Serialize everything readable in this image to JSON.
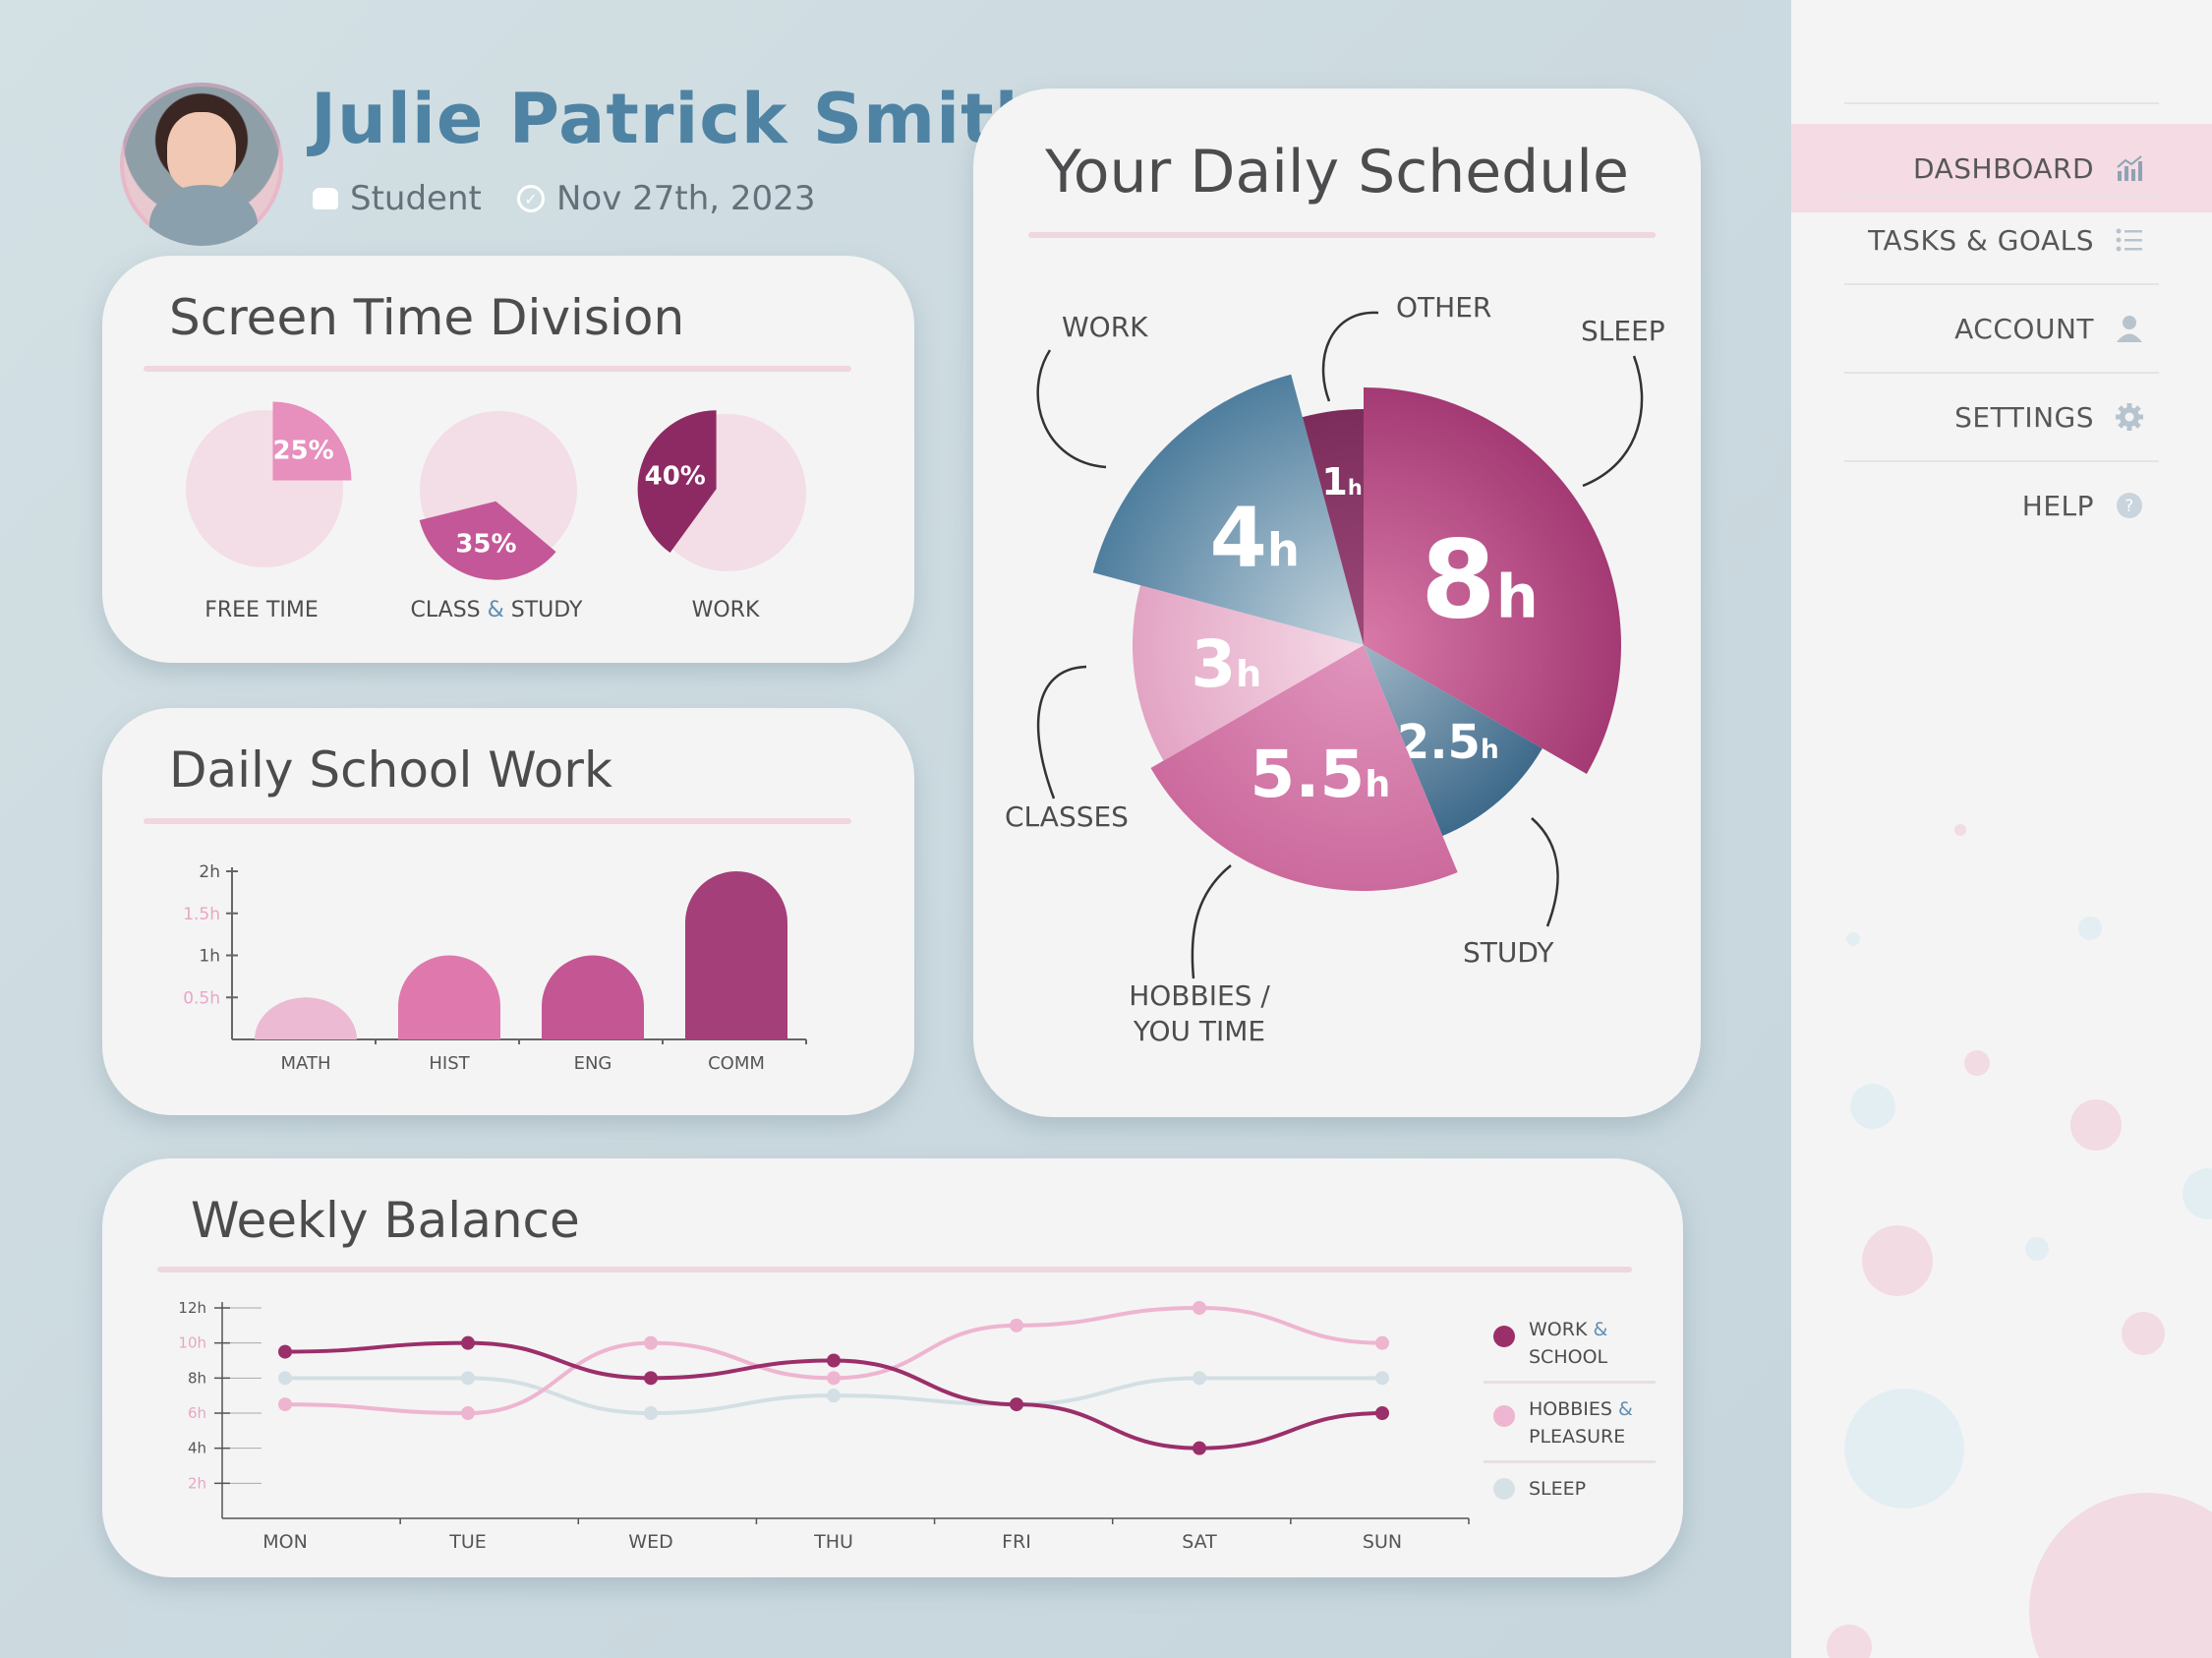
{
  "user": {
    "name": "Julie Patrick Smith",
    "role": "Student",
    "date": "Nov 27th, 2023"
  },
  "colors": {
    "accent_blue": "#4f83a3",
    "pink_light": "#f3dbe5",
    "pink": "#e07aae",
    "magenta": "#b35189",
    "plum": "#9b2f6a",
    "grey_blue": "#cfdbe0"
  },
  "screen_time": {
    "title": "Screen Time Division",
    "items": [
      {
        "label_main": "FREE TIME",
        "label_amp": "",
        "label_rest": "",
        "percent": 25,
        "display": "25%"
      },
      {
        "label_main": "CLASS ",
        "label_amp": "&",
        "label_rest": " STUDY",
        "percent": 35,
        "display": "35%"
      },
      {
        "label_main": "WORK",
        "label_amp": "",
        "label_rest": "",
        "percent": 40,
        "display": "40%"
      }
    ]
  },
  "school_work": {
    "title": "Daily School Work",
    "chart_data": {
      "type": "bar",
      "categories": [
        "MATH",
        "HIST",
        "ENG",
        "COMM"
      ],
      "values": [
        0.5,
        1.0,
        1.0,
        2.0
      ],
      "ylim": [
        0,
        2
      ],
      "yticks": [
        "2h",
        "1.5h",
        "1h",
        "0.5h"
      ],
      "ytick_values": [
        2,
        1.5,
        1,
        0.5
      ]
    }
  },
  "schedule": {
    "title": "Your Daily Schedule",
    "chart_data": {
      "type": "pie",
      "slices": [
        {
          "name": "SLEEP",
          "value": 8,
          "display": "8",
          "unit": "h"
        },
        {
          "name": "STUDY",
          "value": 2.5,
          "display": "2.5",
          "unit": "h"
        },
        {
          "name": "HOBBIES / YOU TIME",
          "value": 5.5,
          "display": "5.5",
          "unit": "h"
        },
        {
          "name": "CLASSES",
          "value": 3,
          "display": "3",
          "unit": "h"
        },
        {
          "name": "WORK",
          "value": 4,
          "display": "4",
          "unit": "h"
        },
        {
          "name": "OTHER",
          "value": 1,
          "display": "1",
          "unit": "h"
        }
      ],
      "callouts": {
        "work": "WORK",
        "other": "OTHER",
        "sleep": "SLEEP",
        "classes": "CLASSES",
        "hobbies_1": "HOBBIES /",
        "hobbies_2": "YOU TIME",
        "study": "STUDY"
      }
    }
  },
  "weekly": {
    "title": "Weekly Balance",
    "chart_data": {
      "type": "line",
      "x": [
        "MON",
        "TUE",
        "WED",
        "THU",
        "FRI",
        "SAT",
        "SUN"
      ],
      "yticks": [
        "12h",
        "10h",
        "8h",
        "6h",
        "4h",
        "2h"
      ],
      "ytick_values": [
        12,
        10,
        8,
        6,
        4,
        2
      ],
      "ylim": [
        0,
        12
      ],
      "series": [
        {
          "name": "WORK & SCHOOL",
          "values": [
            9.5,
            10,
            8,
            9,
            6.5,
            4,
            6
          ]
        },
        {
          "name": "HOBBIES & PLEASURE",
          "values": [
            6.5,
            6,
            10,
            8,
            11,
            12,
            10
          ]
        },
        {
          "name": "SLEEP",
          "values": [
            8,
            8,
            6,
            7,
            6.5,
            8,
            8
          ]
        }
      ]
    },
    "legend": [
      {
        "line1_a": "WORK ",
        "line1_amp": "&",
        "line2": "SCHOOL"
      },
      {
        "line1_a": "HOBBIES ",
        "line1_amp": "&",
        "line2": "PLEASURE"
      },
      {
        "line1_a": "SLEEP",
        "line1_amp": "",
        "line2": ""
      }
    ]
  },
  "sidebar": {
    "items": [
      {
        "label": "DASHBOARD",
        "icon": "chart-icon"
      },
      {
        "label": "TASKS & GOALS",
        "icon": "list-icon"
      },
      {
        "label": "ACCOUNT",
        "icon": "user-icon"
      },
      {
        "label": "SETTINGS",
        "icon": "gear-icon"
      },
      {
        "label": "HELP",
        "icon": "help-icon"
      }
    ]
  }
}
